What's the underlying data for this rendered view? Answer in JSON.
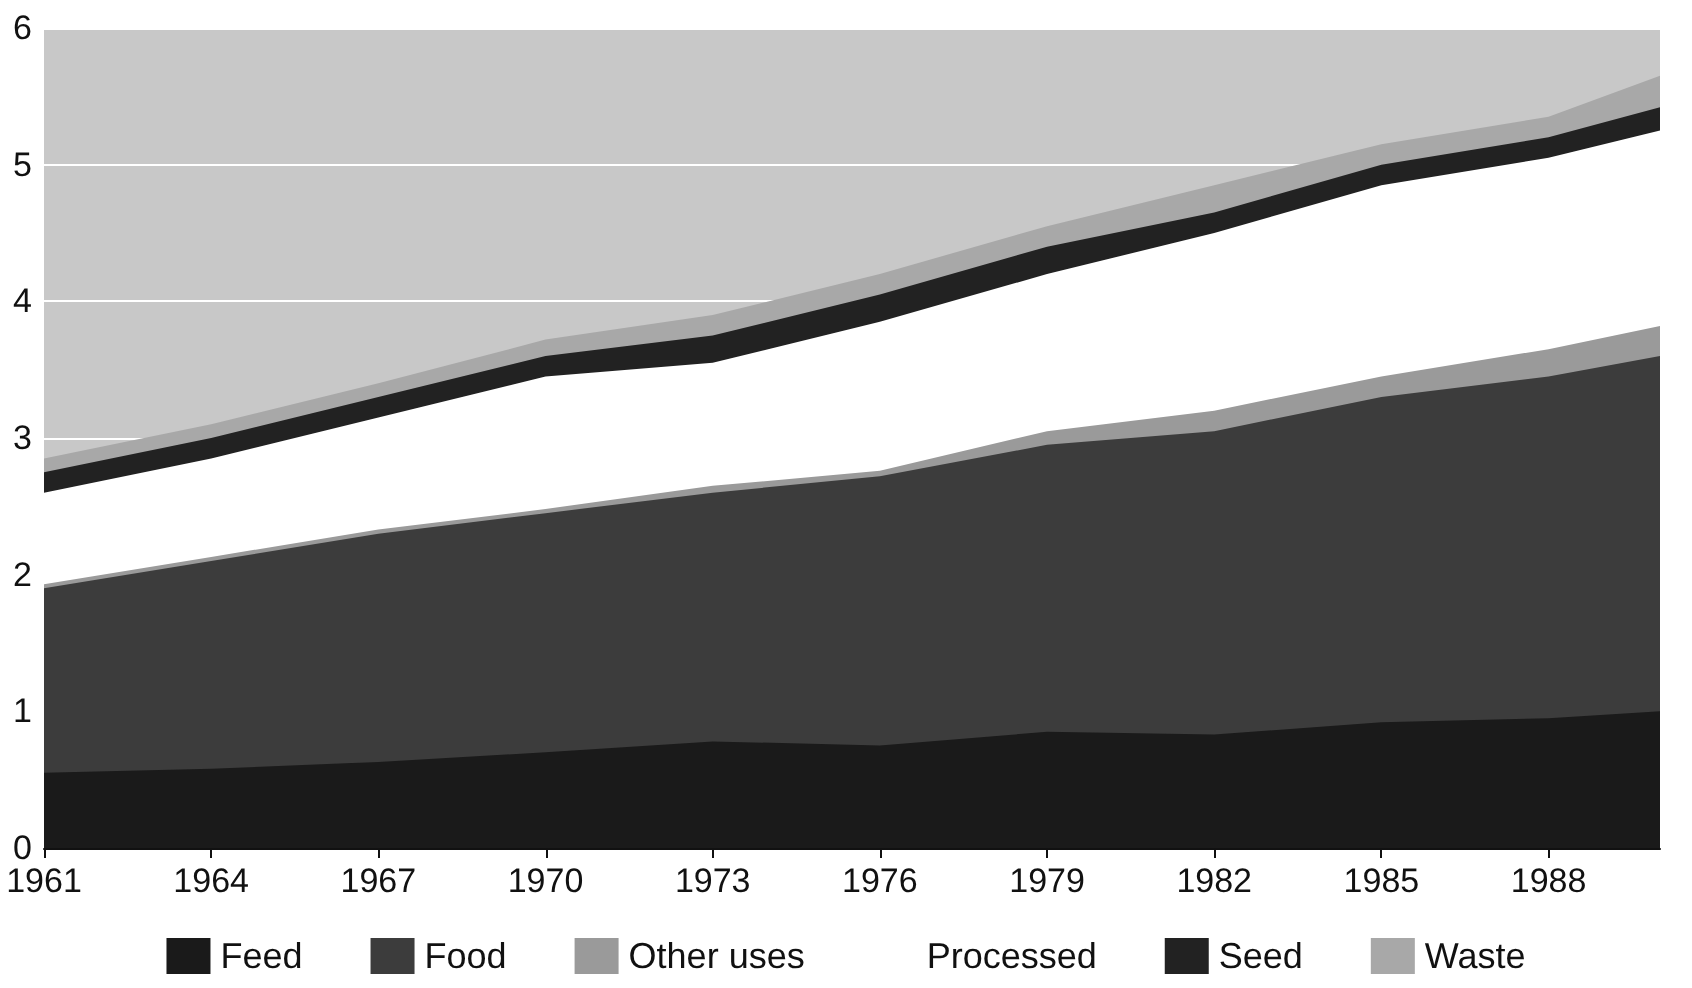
{
  "chart_data": {
    "type": "area",
    "stacked": true,
    "x": [
      1961,
      1964,
      1967,
      1970,
      1973,
      1976,
      1979,
      1982,
      1985,
      1988,
      1990
    ],
    "series": [
      {
        "name": "Feed",
        "color": "#1a1a1a",
        "values": [
          0.55,
          0.58,
          0.63,
          0.7,
          0.78,
          0.75,
          0.85,
          0.83,
          0.92,
          0.95,
          1.0
        ]
      },
      {
        "name": "Food",
        "color": "#3c3c3c",
        "values": [
          1.35,
          1.52,
          1.67,
          1.75,
          1.82,
          1.97,
          2.1,
          2.22,
          2.38,
          2.5,
          2.6
        ]
      },
      {
        "name": "Other uses",
        "color": "#9a9a9a",
        "values": [
          0.03,
          0.03,
          0.03,
          0.03,
          0.05,
          0.04,
          0.1,
          0.15,
          0.15,
          0.2,
          0.22
        ]
      },
      {
        "name": "Processed",
        "color": "#ffffff",
        "values": [
          0.67,
          0.72,
          0.82,
          0.97,
          0.9,
          1.09,
          1.15,
          1.3,
          1.4,
          1.4,
          1.43
        ]
      },
      {
        "name": "Seed",
        "color": "#222222",
        "values": [
          0.15,
          0.15,
          0.15,
          0.15,
          0.2,
          0.2,
          0.2,
          0.15,
          0.15,
          0.15,
          0.17
        ]
      },
      {
        "name": "Waste",
        "color": "#a8a8a8",
        "values": [
          0.1,
          0.1,
          0.1,
          0.12,
          0.15,
          0.15,
          0.15,
          0.2,
          0.15,
          0.15,
          0.23
        ]
      }
    ],
    "xlim": [
      1961,
      1990
    ],
    "xticks": [
      1961,
      1964,
      1967,
      1970,
      1973,
      1976,
      1979,
      1982,
      1985,
      1988
    ],
    "ylim": [
      0,
      6
    ],
    "yticks": [
      0,
      1,
      2,
      3,
      4,
      5,
      6
    ],
    "grid": "y",
    "legend": "bottom"
  }
}
